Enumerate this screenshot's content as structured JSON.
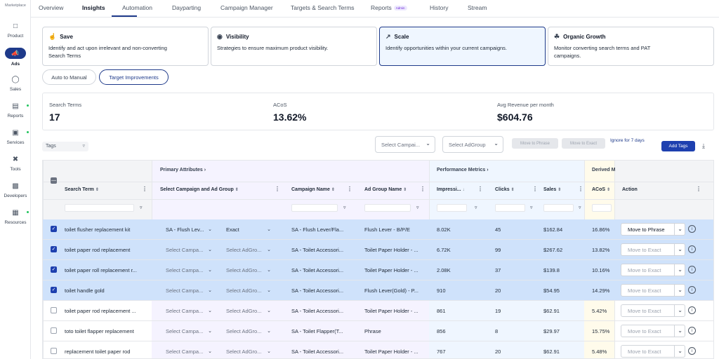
{
  "sidebar": {
    "brand": "Marketplace",
    "items": [
      {
        "label": "Product",
        "icon": "box-icon",
        "active": false,
        "dot": false
      },
      {
        "label": "Ads",
        "icon": "megaphone-icon",
        "active": true,
        "dot": false
      },
      {
        "label": "Sales",
        "icon": "dollar-icon",
        "active": false,
        "dot": false
      },
      {
        "label": "Reports",
        "icon": "report-icon",
        "active": false,
        "dot": true
      },
      {
        "label": "Services",
        "icon": "briefcase-icon",
        "active": false,
        "dot": true
      },
      {
        "label": "Tools",
        "icon": "tools-icon",
        "active": false,
        "dot": false
      },
      {
        "label": "Developers",
        "icon": "code-icon",
        "active": false,
        "dot": false
      },
      {
        "label": "Resources",
        "icon": "book-icon",
        "active": false,
        "dot": true
      }
    ]
  },
  "nav": {
    "tabs": [
      "Overview",
      "Insights",
      "Automation",
      "Dayparting",
      "Campaign Manager",
      "Targets & Search Terms",
      "Reports",
      "History",
      "Stream"
    ],
    "active": "Insights",
    "admin_badge": "Admin"
  },
  "cards": [
    {
      "title": "Save",
      "icon": "thumbs-up-icon",
      "desc": "Identify and act upon irrelevant and non-converting Search Terms"
    },
    {
      "title": "Visibility",
      "icon": "eye-icon",
      "desc": "Strategies to ensure maximum product visibility."
    },
    {
      "title": "Scale",
      "icon": "trending-up-icon",
      "desc": "Identify opportunities within your current campaigns."
    },
    {
      "title": "Organic Growth",
      "icon": "sprout-icon",
      "desc": "Monitor converting search terms and PAT campaigns."
    }
  ],
  "subtabs": [
    "Auto to Manual",
    "Target Improvements"
  ],
  "stats": [
    {
      "label": "Search Terms",
      "value": "17"
    },
    {
      "label": "ACoS",
      "value": "13.62%"
    },
    {
      "label": "Avg Revenue per month",
      "value": "$604.76"
    }
  ],
  "toolbar": {
    "tags": "Tags",
    "select_campaign": "Select Campai...",
    "select_adgroup": "Select AdGroup",
    "move_phrase": "Move to Phrase",
    "move_exact": "Move to Exact",
    "ignore": "Ignore for 7 days",
    "add_tags": "Add Tags"
  },
  "table": {
    "groups": [
      "Primary Attributes",
      "Performance Metrics",
      "Derived M"
    ],
    "columns": [
      "Search Term",
      "Select Campaign and Ad Group",
      "Campaign Name",
      "Ad Group Name",
      "Impressi...",
      "Clicks",
      "Sales",
      "ACoS",
      "Action"
    ],
    "rows": [
      {
        "checked": true,
        "term": "toilet flusher replacement kit",
        "campaign": "SA - Flush Lev...",
        "adgroup": "Exact",
        "camp_sel": true,
        "campaign_name": "SA - Flush Lever/Fla...",
        "adgroup_name": "Flush Lever - B/P/E",
        "impressions": "8.02K",
        "clicks": "45",
        "sales": "$162.84",
        "acos": "16.86%",
        "action": "Move to Phrase",
        "action_on": true
      },
      {
        "checked": true,
        "term": "toilet paper rod replacement",
        "campaign": "Select Campa...",
        "adgroup": "Select AdGro...",
        "camp_sel": false,
        "campaign_name": "SA - Toilet Accessori...",
        "adgroup_name": "Toilet Paper Holder - ...",
        "impressions": "6.72K",
        "clicks": "99",
        "sales": "$267.62",
        "acos": "13.82%",
        "action": "Move to Exact",
        "action_on": false
      },
      {
        "checked": true,
        "term": "toilet paper roll replacement r...",
        "campaign": "Select Campa...",
        "adgroup": "Select AdGro...",
        "camp_sel": false,
        "campaign_name": "SA - Toilet Accessori...",
        "adgroup_name": "Toilet Paper Holder - ...",
        "impressions": "2.08K",
        "clicks": "37",
        "sales": "$139.8",
        "acos": "10.16%",
        "action": "Move to Exact",
        "action_on": false
      },
      {
        "checked": true,
        "term": "toilet handle gold",
        "campaign": "Select Campa...",
        "adgroup": "Select AdGro...",
        "camp_sel": false,
        "campaign_name": "SA - Toilet Accessori...",
        "adgroup_name": "Flush Lever(Gold) - P...",
        "impressions": "910",
        "clicks": "20",
        "sales": "$54.95",
        "acos": "14.29%",
        "action": "Move to Exact",
        "action_on": false
      },
      {
        "checked": false,
        "term": "toilet paper rod replacement ...",
        "campaign": "Select Campa...",
        "adgroup": "Select AdGro...",
        "camp_sel": false,
        "campaign_name": "SA - Toilet Accessori...",
        "adgroup_name": "Toilet Paper Holder - ...",
        "impressions": "861",
        "clicks": "19",
        "sales": "$62.91",
        "acos": "5.42%",
        "action": "Move to Exact",
        "action_on": false
      },
      {
        "checked": false,
        "term": "toto toilet flapper replacement",
        "campaign": "Select Campa...",
        "adgroup": "Select AdGro...",
        "camp_sel": false,
        "campaign_name": "SA - Toilet Flapper(T...",
        "adgroup_name": "Phrase",
        "impressions": "856",
        "clicks": "8",
        "sales": "$29.97",
        "acos": "15.75%",
        "action": "Move to Exact",
        "action_on": false
      },
      {
        "checked": false,
        "term": "replacement toilet paper rod",
        "campaign": "Select Campa...",
        "adgroup": "Select AdGro...",
        "camp_sel": false,
        "campaign_name": "SA - Toilet Accessori...",
        "adgroup_name": "Toilet Paper Holder - ...",
        "impressions": "767",
        "clicks": "20",
        "sales": "$62.91",
        "acos": "5.48%",
        "action": "Move to Exact",
        "action_on": false
      }
    ]
  },
  "colors": {
    "accent": "#1e3a8a",
    "selected_row": "#cfe2fb",
    "primary_col": "#f3efff",
    "perf_col": "#eef5ff",
    "derived_col": "#fffbeb"
  }
}
